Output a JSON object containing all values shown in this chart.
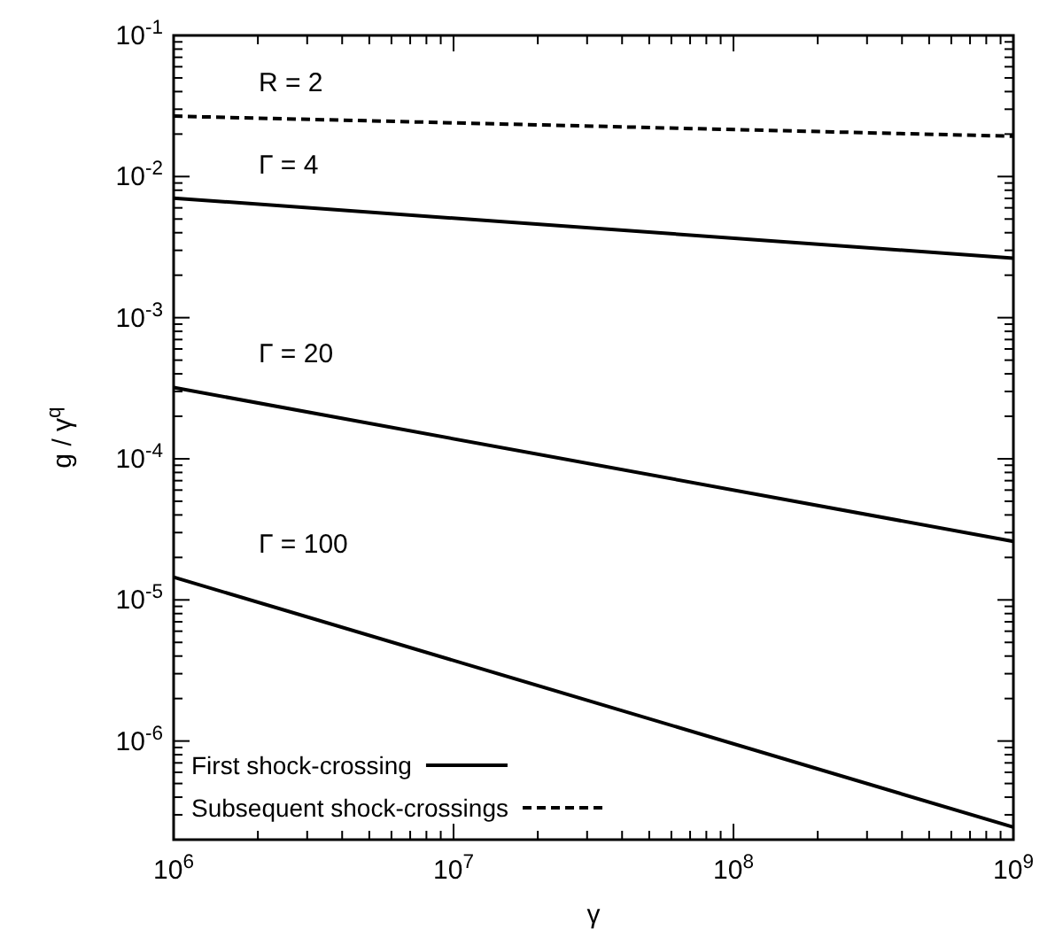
{
  "chart_data": {
    "type": "line",
    "xlabel": "γ",
    "ylabel": "g / γ$^{q}$",
    "log": "xy",
    "xlim": [
      1000000,
      1000000000
    ],
    "ylim": [
      2e-07,
      0.1
    ],
    "xticks": [
      {
        "value": 1000000,
        "label": "10$^{6}$"
      },
      {
        "value": 10000000,
        "label": "10$^{7}$"
      },
      {
        "value": 100000000,
        "label": "10$^{8}$"
      },
      {
        "value": 1000000000,
        "label": "10$^{9}$"
      }
    ],
    "yticks": [
      {
        "value": 1e-06,
        "label": "10$^{-6}$"
      },
      {
        "value": 1e-05,
        "label": "10$^{-5}$"
      },
      {
        "value": 0.0001,
        "label": "10$^{-4}$"
      },
      {
        "value": 0.001,
        "label": "10$^{-3}$"
      },
      {
        "value": 0.01,
        "label": "10$^{-2}$"
      },
      {
        "value": 0.1,
        "label": "10$^{-1}$"
      }
    ],
    "x": [
      1000000,
      1000000000
    ],
    "series": [
      {
        "name": "First shock-crossing",
        "color": "#000000",
        "line_style": "solid",
        "values": [
          0.00703,
          0.00264
        ]
      },
      {
        "color": "#000000",
        "line_style": "solid",
        "values": [
          0.00032,
          2.6e-05
        ]
      },
      {
        "color": "#000000",
        "line_style": "solid",
        "values": [
          1.45e-05,
          2.45e-07
        ]
      },
      {
        "name": "Subsequent shock-crossings",
        "color": "#000000",
        "line_style": "dashed",
        "values": [
          0.0268,
          0.0193
        ]
      }
    ],
    "annotations": [
      "R  = 2",
      "Γ  = 4",
      "Γ  = 20",
      "Γ  = 100"
    ],
    "legend": "bottom left",
    "grid": false,
    "marker": "none"
  }
}
